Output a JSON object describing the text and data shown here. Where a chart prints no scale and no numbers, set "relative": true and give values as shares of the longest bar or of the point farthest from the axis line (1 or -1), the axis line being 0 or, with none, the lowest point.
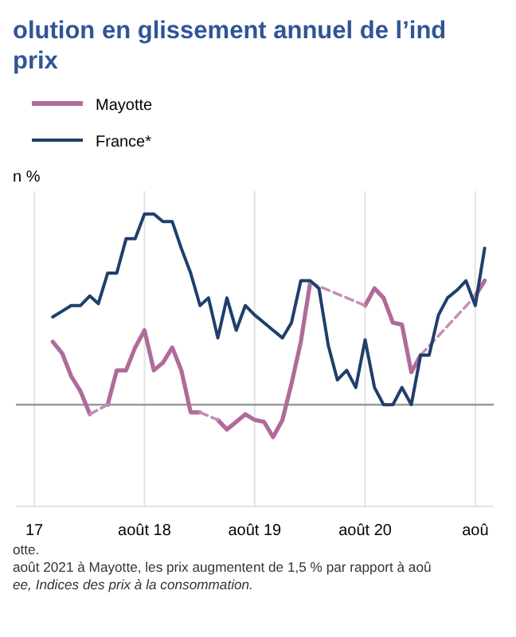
{
  "chart_data": {
    "type": "line",
    "title": "olution en glissement annuel de l’ind",
    "subtitle": "prix",
    "ylabel": "n %",
    "relative": true,
    "grid": "x",
    "legend": "top left",
    "line_style": "solid",
    "marker": "none",
    "x": [
      "2017-10",
      "2017-11",
      "2017-12",
      "2018-01",
      "2018-02",
      "2018-03",
      "2018-04",
      "2018-05",
      "2018-06",
      "2018-07",
      "2018-08",
      "2018-09",
      "2018-10",
      "2018-11",
      "2018-12",
      "2019-01",
      "2019-02",
      "2019-03",
      "2019-04",
      "2019-05",
      "2019-06",
      "2019-07",
      "2019-08",
      "2019-09",
      "2019-10",
      "2019-11",
      "2019-12",
      "2020-01",
      "2020-02",
      "2020-03",
      "2020-04",
      "2020-05",
      "2020-06",
      "2020-07",
      "2020-08",
      "2020-09",
      "2020-10",
      "2020-11",
      "2020-12",
      "2021-01",
      "2021-02",
      "2021-03",
      "2021-04",
      "2021-05",
      "2021-06",
      "2021-07",
      "2021-08",
      "2021-09"
    ],
    "xlim": [
      "2017-06",
      "2021-10"
    ],
    "xticks": [
      {
        "value": "2017-08",
        "label": "17"
      },
      {
        "value": "2018-08",
        "label": "août 18"
      },
      {
        "value": "2019-08",
        "label": "août 19"
      },
      {
        "value": "2020-08",
        "label": "août 20"
      },
      {
        "value": "2021-08",
        "label": "aoû"
      }
    ],
    "series": [
      {
        "name": "Mayotte",
        "color": "#b06b9a",
        "values": [
          0.33,
          0.27,
          0.15,
          0.07,
          -0.05,
          null,
          0,
          0.18,
          0.18,
          0.3,
          0.39,
          0.18,
          0.22,
          0.3,
          0.18,
          -0.04,
          -0.04,
          null,
          -0.08,
          -0.13,
          -0.09,
          -0.05,
          -0.08,
          -0.09,
          -0.17,
          -0.08,
          0.11,
          0.33,
          0.64,
          null,
          null,
          null,
          null,
          null,
          0.52,
          0.61,
          0.56,
          0.43,
          0.42,
          0.17,
          0.26,
          null,
          null,
          null,
          null,
          null,
          0.57,
          0.65
        ]
      },
      {
        "color": "#c58db3",
        "line_style": "dashed",
        "x": [
          "2018-02",
          "2018-04"
        ],
        "values": [
          -0.05,
          0
        ]
      },
      {
        "color": "#c68eb4",
        "line_style": "dashed",
        "x": [
          "2019-02",
          "2019-04"
        ],
        "values": [
          -0.04,
          -0.08
        ]
      },
      {
        "color": "#c78fb5",
        "line_style": "dashed",
        "x": [
          "2020-02",
          "2020-08"
        ],
        "values": [
          0.64,
          0.52
        ]
      },
      {
        "color": "#c890b6",
        "line_style": "dashed",
        "x": [
          "2021-02",
          "2021-08"
        ],
        "values": [
          0.26,
          0.57
        ]
      },
      {
        "name": "France*",
        "color": "#1f3f6b",
        "values": [
          0.46,
          0.49,
          0.52,
          0.52,
          0.57,
          0.53,
          0.69,
          0.69,
          0.87,
          0.87,
          1,
          1,
          0.96,
          0.96,
          0.82,
          0.69,
          0.52,
          0.56,
          0.35,
          0.56,
          0.39,
          0.52,
          0.47,
          0.43,
          0.39,
          0.35,
          0.43,
          0.65,
          0.65,
          0.61,
          0.31,
          0.13,
          0.18,
          0.09,
          0.34,
          0.09,
          0,
          0,
          0.09,
          0,
          0.26,
          0.26,
          0.47,
          0.56,
          0.6,
          0.65,
          0.52,
          0.82
        ]
      }
    ],
    "annotations": [
      "otte.",
      "août 2021 à Mayotte, les prix augmentent de 1,5 % par rapport à aoû",
      "ee, Indices des prix à la consommation."
    ]
  }
}
